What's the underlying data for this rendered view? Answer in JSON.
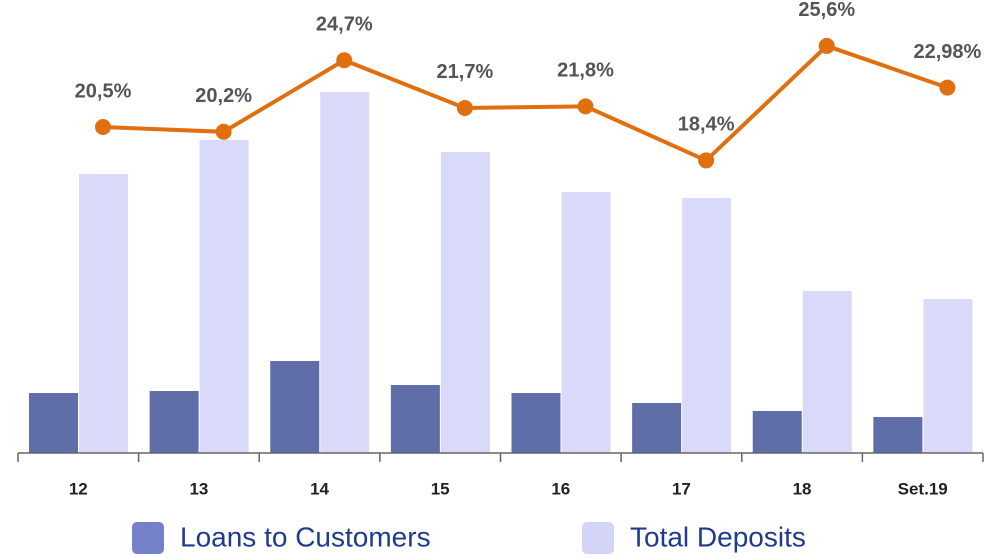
{
  "chart_data": {
    "type": "bar",
    "categories": [
      "12",
      "13",
      "14",
      "15",
      "16",
      "17",
      "18",
      "Set.19"
    ],
    "series": [
      {
        "name": "Loans to Customers",
        "color": "#5f6ea8",
        "values": [
          60,
          62,
          92,
          68,
          60,
          50,
          42,
          36
        ]
      },
      {
        "name": "Total Deposits",
        "color": "#d9d9fa",
        "values": [
          279,
          313,
          361,
          301,
          261,
          255,
          162,
          154
        ]
      },
      {
        "name": null,
        "type": "line",
        "axis": "y2",
        "color": "#e0700f",
        "values": [
          20.5,
          20.2,
          24.7,
          21.7,
          21.8,
          18.4,
          25.6,
          22.98
        ],
        "value_labels": [
          "20,5%",
          "20,2%",
          "24,7%",
          "21,7%",
          "21,8%",
          "18,4%",
          "25,6%",
          "22,98%"
        ]
      }
    ],
    "ylim": [
      0,
      450
    ],
    "y2lim": [
      0,
      28.3
    ],
    "legend": "bottom"
  }
}
